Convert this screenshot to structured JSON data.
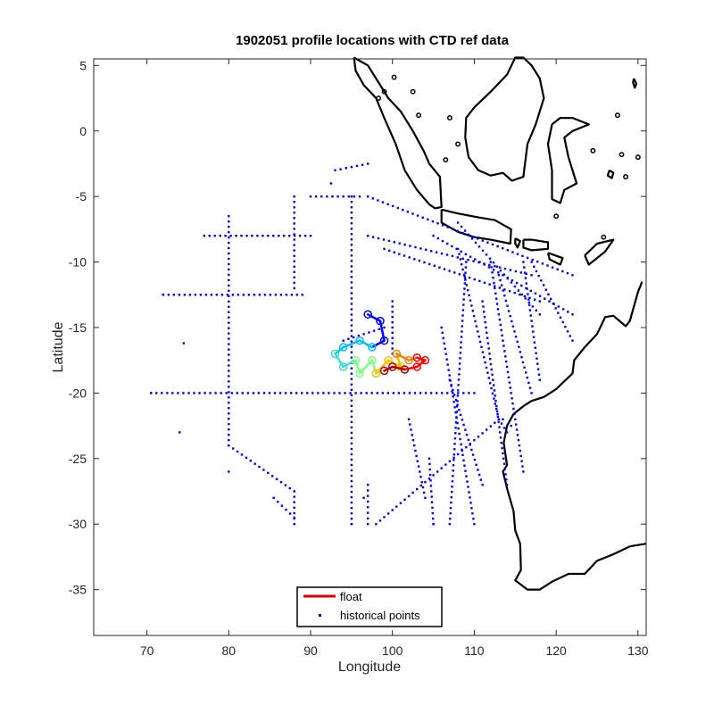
{
  "chart_data": {
    "type": "scatter",
    "title": "1902051 profile locations with CTD ref data",
    "xlabel": "Longitude",
    "ylabel": "Latitude",
    "xlim": [
      63.5,
      131
    ],
    "ylim": [
      -38.5,
      5.5
    ],
    "xticks": [
      70,
      80,
      90,
      100,
      110,
      120,
      130
    ],
    "yticks": [
      5,
      0,
      -5,
      -10,
      -15,
      -20,
      -25,
      -30,
      -35
    ],
    "xtick_labels": [
      "70",
      "80",
      "90",
      "100",
      "110",
      "120",
      "130"
    ],
    "ytick_labels": [
      "5",
      "0",
      "-5",
      "-10",
      "-15",
      "-20",
      "-25",
      "-30",
      "-35"
    ],
    "grid": false,
    "legend_position": "bottom-center",
    "legend": [
      {
        "label": "float",
        "color": "#dd0000",
        "marker": "line"
      },
      {
        "label": "historical points",
        "color": "#0000ff",
        "marker": "dot"
      }
    ],
    "coastline_color": "#000000",
    "series": [
      {
        "name": "historical points",
        "color": "#0000ff",
        "tracks": [
          [
            [
              70.5,
              -20
            ],
            [
              110,
              -20
            ]
          ],
          [
            [
              77,
              -8
            ],
            [
              90,
              -8
            ]
          ],
          [
            [
              80,
              -6.5
            ],
            [
              80,
              -24
            ]
          ],
          [
            [
              88,
              -5
            ],
            [
              88,
              -12
            ]
          ],
          [
            [
              72,
              -12.5
            ],
            [
              89,
              -12.5
            ]
          ],
          [
            [
              95,
              -5
            ],
            [
              95,
              -30
            ]
          ],
          [
            [
              90,
              -5
            ],
            [
              96,
              -5
            ]
          ],
          [
            [
              93,
              -3
            ],
            [
              97,
              -2.5
            ]
          ],
          [
            [
              97,
              -5
            ],
            [
              122,
              -11
            ]
          ],
          [
            [
              97,
              -8
            ],
            [
              117,
              -11
            ]
          ],
          [
            [
              99,
              -9
            ],
            [
              118,
              -13
            ]
          ],
          [
            [
              108,
              -7
            ],
            [
              118,
              -14
            ]
          ],
          [
            [
              105,
              -8
            ],
            [
              122,
              -14
            ]
          ],
          [
            [
              108,
              -9
            ],
            [
              113,
              -22
            ]
          ],
          [
            [
              112,
              -10
            ],
            [
              116,
              -26
            ]
          ],
          [
            [
              116,
              -10
            ],
            [
              118,
              -19
            ]
          ],
          [
            [
              113,
              -11
            ],
            [
              117,
              -20
            ]
          ],
          [
            [
              117,
              -10
            ],
            [
              122,
              -16
            ]
          ],
          [
            [
              111,
              -13
            ],
            [
              114,
              -27
            ]
          ],
          [
            [
              109,
              -10
            ],
            [
              107,
              -30
            ]
          ],
          [
            [
              106,
              -15
            ],
            [
              110,
              -30
            ]
          ],
          [
            [
              107,
              -19
            ],
            [
              111,
              -27
            ]
          ],
          [
            [
              98,
              -30
            ],
            [
              113,
              -22
            ]
          ],
          [
            [
              113,
              -22
            ],
            [
              114,
              -23
            ]
          ],
          [
            [
              104.5,
              -25
            ],
            [
              105,
              -30
            ]
          ],
          [
            [
              80,
              -24
            ],
            [
              88,
              -27.5
            ]
          ],
          [
            [
              85.5,
              -28
            ],
            [
              88,
              -29.5
            ]
          ],
          [
            [
              88,
              -27.5
            ],
            [
              88,
              -30
            ]
          ],
          [
            [
              97,
              -27
            ],
            [
              97,
              -30
            ]
          ],
          [
            [
              102,
              -22
            ],
            [
              104,
              -28
            ]
          ],
          [
            [
              100,
              -13
            ],
            [
              100,
              -17
            ]
          ],
          [
            [
              94,
              -16
            ],
            [
              99,
              -15
            ]
          ]
        ],
        "points": [
          [
            74.5,
            -16.2
          ],
          [
            74,
            -23
          ],
          [
            80,
            -26
          ],
          [
            72,
            -12.5
          ],
          [
            70.5,
            -20
          ],
          [
            88,
            -30
          ],
          [
            92.5,
            -4
          ],
          [
            95,
            -30
          ],
          [
            105,
            -30
          ],
          [
            113.5,
            -22
          ],
          [
            114.5,
            -22.5
          ],
          [
            96.5,
            -28
          ]
        ]
      },
      {
        "name": "float",
        "color": "#dd0000",
        "colors_along_track": [
          "#0000ff",
          "#00bfff",
          "#40e0d0",
          "#7fff7f",
          "#ffbf00",
          "#ff7f00",
          "#ff0000",
          "#b00000"
        ],
        "track": [
          [
            97,
            -14
          ],
          [
            98.5,
            -14.5
          ],
          [
            99,
            -16
          ],
          [
            97.5,
            -16.5
          ],
          [
            96,
            -16
          ],
          [
            94,
            -16.5
          ],
          [
            93,
            -17
          ],
          [
            94,
            -18
          ],
          [
            95.5,
            -17.5
          ],
          [
            96,
            -18.5
          ],
          [
            97.5,
            -17.5
          ],
          [
            98,
            -18.5
          ],
          [
            99.5,
            -17.5
          ],
          [
            101,
            -18
          ],
          [
            100.5,
            -17
          ],
          [
            102,
            -17.5
          ],
          [
            103,
            -17.3
          ],
          [
            104,
            -17.5
          ],
          [
            103,
            -18
          ],
          [
            101.5,
            -18.2
          ],
          [
            100,
            -18
          ],
          [
            99,
            -18.3
          ]
        ]
      }
    ]
  }
}
